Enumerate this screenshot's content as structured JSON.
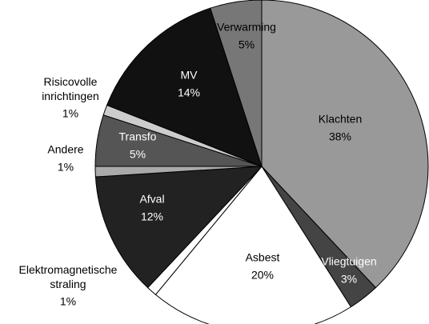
{
  "chart_data": {
    "type": "pie",
    "categories": [
      "Klachten",
      "Vliegtuigen",
      "Asbest",
      "Elektromagnetische straling",
      "Afval",
      "Andere",
      "Transfo",
      "Risicovolle inrichtingen",
      "MV",
      "Verwarming"
    ],
    "values": [
      38,
      3,
      20,
      1,
      12,
      1,
      5,
      1,
      14,
      5
    ],
    "value_labels": [
      "38%",
      "3%",
      "20%",
      "1%",
      "12%",
      "1%",
      "5%",
      "1%",
      "14%",
      "5%"
    ],
    "colors": [
      "#999999",
      "#444444",
      "#ffffff",
      "#ffffff",
      "#222222",
      "#aaaaaa",
      "#555555",
      "#cccccc",
      "#111111",
      "#777777"
    ]
  }
}
